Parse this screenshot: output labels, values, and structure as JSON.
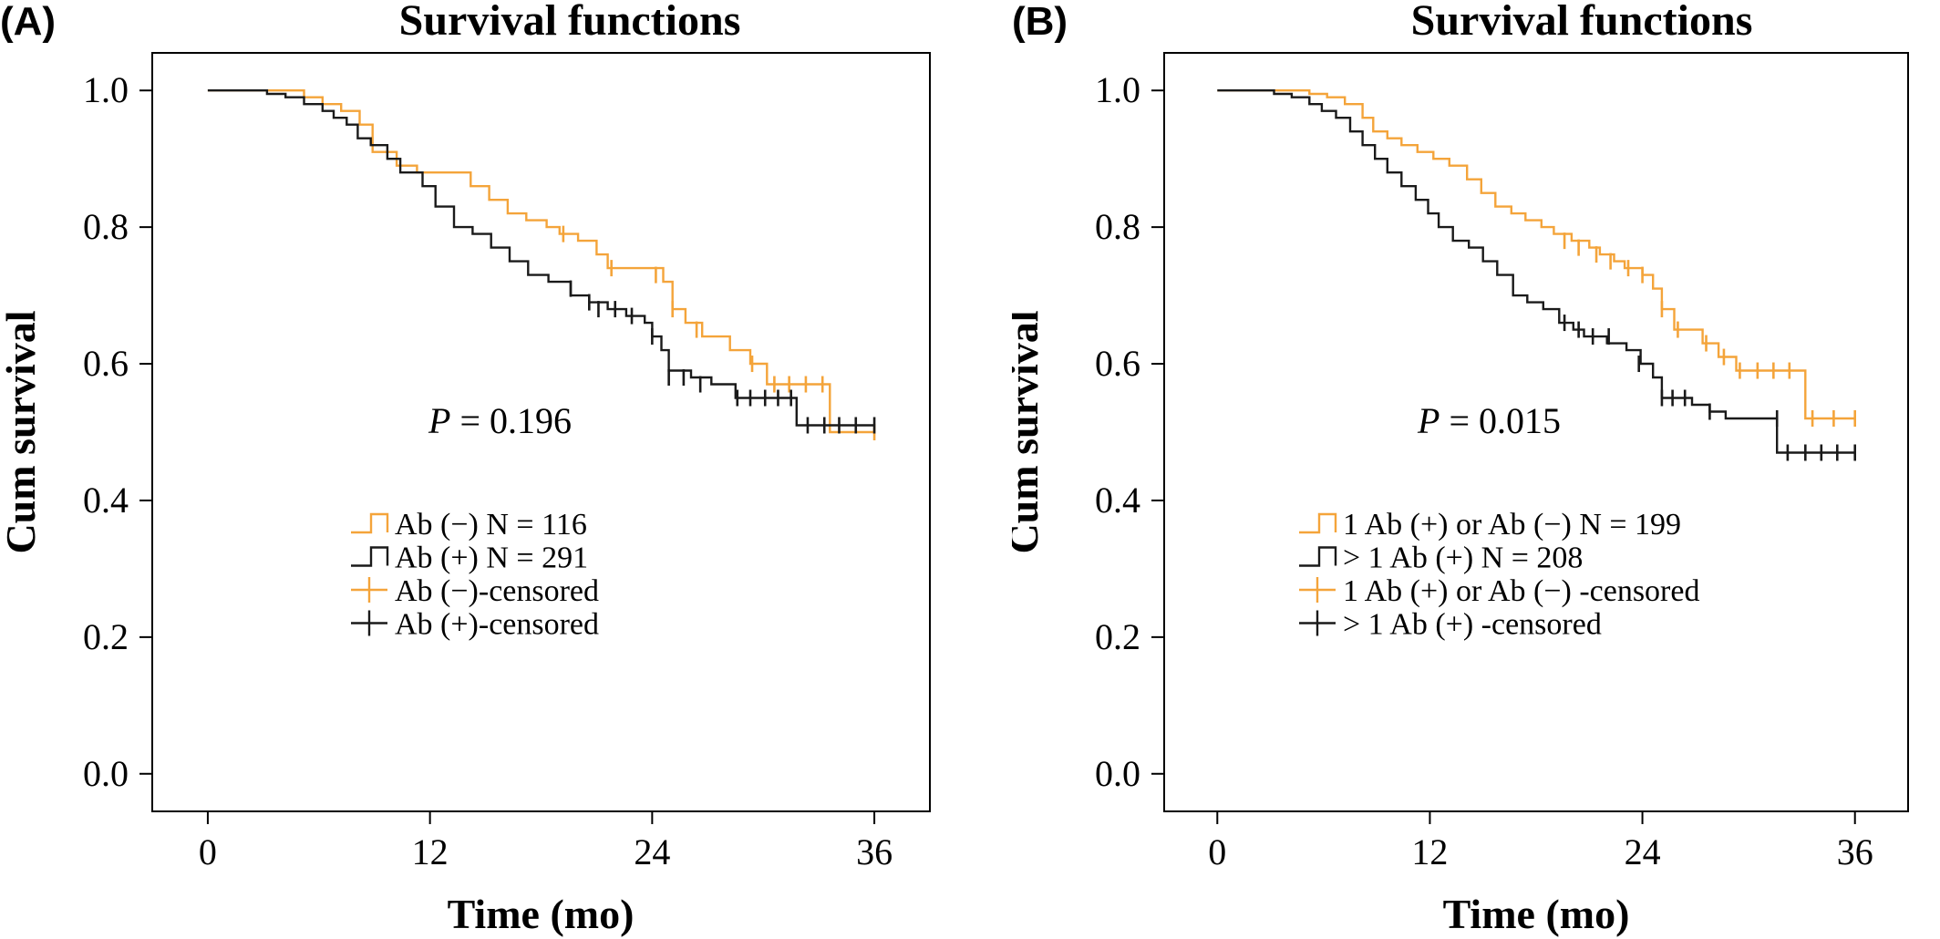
{
  "chart_data": [
    {
      "type": "line",
      "subtype": "kaplan-meier",
      "panel_label": "(A)",
      "title": "Survival functions",
      "xlabel": "Time (mo)",
      "ylabel": "Cum survival",
      "xlim": [
        -3,
        39
      ],
      "ylim": [
        -0.055,
        1.055
      ],
      "xticks": [
        0,
        12,
        24,
        36
      ],
      "xtick_labels": [
        "0",
        "12",
        "24",
        "36"
      ],
      "yticks": [
        0.0,
        0.2,
        0.4,
        0.6,
        0.8,
        1.0
      ],
      "ytick_labels": [
        "0.0",
        "0.2",
        "0.4",
        "0.6",
        "0.8",
        "1.0"
      ],
      "grid": false,
      "legend_position": "lower-left",
      "annotation": {
        "italic": "P",
        "text": " = 0.196"
      },
      "series": [
        {
          "name": "Ab (−)  N = 116",
          "censored_label": "Ab (−)-censored",
          "color": "#F4A43A",
          "steps": [
            [
              0,
              1.0
            ],
            [
              5.2,
              0.99
            ],
            [
              6.2,
              0.98
            ],
            [
              7.2,
              0.97
            ],
            [
              8.2,
              0.95
            ],
            [
              8.9,
              0.91
            ],
            [
              10.2,
              0.89
            ],
            [
              11.3,
              0.88
            ],
            [
              14.2,
              0.86
            ],
            [
              15.2,
              0.84
            ],
            [
              16.2,
              0.82
            ],
            [
              17.2,
              0.81
            ],
            [
              18.3,
              0.8
            ],
            [
              19,
              0.79
            ],
            [
              20,
              0.78
            ],
            [
              21,
              0.76
            ],
            [
              21.6,
              0.74
            ],
            [
              24.6,
              0.72
            ],
            [
              25.1,
              0.68
            ],
            [
              25.8,
              0.66
            ],
            [
              26.7,
              0.64
            ],
            [
              28.2,
              0.62
            ],
            [
              29.3,
              0.6
            ],
            [
              30.2,
              0.57
            ],
            [
              33.6,
              0.5
            ],
            [
              36,
              0.5
            ]
          ],
          "censored": [
            [
              19.2,
              0.79
            ],
            [
              21.8,
              0.74
            ],
            [
              24.2,
              0.73
            ],
            [
              25.1,
              0.68
            ],
            [
              26.4,
              0.65
            ],
            [
              29.4,
              0.6
            ],
            [
              30.6,
              0.57
            ],
            [
              31.4,
              0.57
            ],
            [
              32.3,
              0.57
            ],
            [
              33.2,
              0.57
            ],
            [
              36,
              0.5
            ]
          ]
        },
        {
          "name": "Ab (+) N = 291",
          "censored_label": "Ab (+)-censored",
          "color": "#1A1A1A",
          "steps": [
            [
              0,
              1.0
            ],
            [
              3.2,
              0.995
            ],
            [
              4.2,
              0.99
            ],
            [
              5.2,
              0.98
            ],
            [
              6.2,
              0.97
            ],
            [
              6.8,
              0.96
            ],
            [
              7.5,
              0.95
            ],
            [
              8.1,
              0.93
            ],
            [
              8.8,
              0.92
            ],
            [
              9.7,
              0.9
            ],
            [
              10.4,
              0.88
            ],
            [
              11.6,
              0.86
            ],
            [
              12.3,
              0.83
            ],
            [
              13.3,
              0.8
            ],
            [
              14.3,
              0.79
            ],
            [
              15.3,
              0.77
            ],
            [
              16.3,
              0.75
            ],
            [
              17.3,
              0.73
            ],
            [
              18.4,
              0.72
            ],
            [
              19.6,
              0.7
            ],
            [
              20.6,
              0.69
            ],
            [
              21.6,
              0.68
            ],
            [
              22.6,
              0.67
            ],
            [
              23.6,
              0.66
            ],
            [
              24,
              0.64
            ],
            [
              24.5,
              0.62
            ],
            [
              24.9,
              0.59
            ],
            [
              26.1,
              0.58
            ],
            [
              27.2,
              0.57
            ],
            [
              28.5,
              0.55
            ],
            [
              31.8,
              0.51
            ],
            [
              36,
              0.51
            ]
          ],
          "censored": [
            [
              19.6,
              0.71
            ],
            [
              20.6,
              0.69
            ],
            [
              21.1,
              0.68
            ],
            [
              22,
              0.68
            ],
            [
              22.9,
              0.67
            ],
            [
              24,
              0.64
            ],
            [
              24.9,
              0.58
            ],
            [
              25.7,
              0.58
            ],
            [
              26.6,
              0.57
            ],
            [
              28.6,
              0.55
            ],
            [
              29.3,
              0.55
            ],
            [
              30.1,
              0.55
            ],
            [
              30.8,
              0.55
            ],
            [
              31.5,
              0.55
            ],
            [
              32.4,
              0.51
            ],
            [
              33.3,
              0.51
            ],
            [
              34.1,
              0.51
            ],
            [
              35,
              0.51
            ],
            [
              36,
              0.51
            ]
          ]
        }
      ]
    },
    {
      "type": "line",
      "subtype": "kaplan-meier",
      "panel_label": "(B)",
      "title": "Survival functions",
      "xlabel": "Time (mo)",
      "ylabel": "Cum survival",
      "xlim": [
        -3,
        39
      ],
      "ylim": [
        -0.055,
        1.055
      ],
      "xticks": [
        0,
        12,
        24,
        36
      ],
      "xtick_labels": [
        "0",
        "12",
        "24",
        "36"
      ],
      "yticks": [
        0.0,
        0.2,
        0.4,
        0.6,
        0.8,
        1.0
      ],
      "ytick_labels": [
        "0.0",
        "0.2",
        "0.4",
        "0.6",
        "0.8",
        "1.0"
      ],
      "grid": false,
      "legend_position": "lower-left",
      "annotation": {
        "italic": "P",
        "text": " = 0.015"
      },
      "series": [
        {
          "name": "1 Ab (+) or Ab (−)  N = 199",
          "censored_label": "1 Ab (+) or Ab (−) -censored",
          "color": "#F4A43A",
          "steps": [
            [
              0,
              1.0
            ],
            [
              5.2,
              0.995
            ],
            [
              6.2,
              0.99
            ],
            [
              7.2,
              0.98
            ],
            [
              8.2,
              0.96
            ],
            [
              8.8,
              0.94
            ],
            [
              9.6,
              0.93
            ],
            [
              10.4,
              0.92
            ],
            [
              11.3,
              0.91
            ],
            [
              12.2,
              0.9
            ],
            [
              13.1,
              0.89
            ],
            [
              14.1,
              0.87
            ],
            [
              14.9,
              0.85
            ],
            [
              15.7,
              0.83
            ],
            [
              16.6,
              0.82
            ],
            [
              17.4,
              0.81
            ],
            [
              18.3,
              0.8
            ],
            [
              19,
              0.79
            ],
            [
              20,
              0.78
            ],
            [
              21,
              0.77
            ],
            [
              21.6,
              0.76
            ],
            [
              22.4,
              0.75
            ],
            [
              23,
              0.74
            ],
            [
              24,
              0.73
            ],
            [
              24.6,
              0.71
            ],
            [
              25.1,
              0.68
            ],
            [
              25.8,
              0.65
            ],
            [
              27.4,
              0.63
            ],
            [
              28.3,
              0.61
            ],
            [
              29.3,
              0.59
            ],
            [
              33.2,
              0.52
            ],
            [
              36,
              0.52
            ]
          ],
          "censored": [
            [
              19.6,
              0.78
            ],
            [
              20.4,
              0.77
            ],
            [
              21.4,
              0.76
            ],
            [
              22.2,
              0.75
            ],
            [
              23.2,
              0.74
            ],
            [
              24,
              0.73
            ],
            [
              25.1,
              0.68
            ],
            [
              26,
              0.65
            ],
            [
              27.6,
              0.63
            ],
            [
              28.6,
              0.61
            ],
            [
              29.5,
              0.59
            ],
            [
              30.5,
              0.59
            ],
            [
              31.4,
              0.59
            ],
            [
              32.3,
              0.59
            ],
            [
              33.6,
              0.52
            ],
            [
              34.8,
              0.52
            ],
            [
              36,
              0.52
            ]
          ]
        },
        {
          "name": "> 1 Ab (+) N = 208",
          "censored_label": "> 1 Ab (+) -censored",
          "color": "#1A1A1A",
          "steps": [
            [
              0,
              1.0
            ],
            [
              3.2,
              0.995
            ],
            [
              4.2,
              0.99
            ],
            [
              5.2,
              0.98
            ],
            [
              5.9,
              0.97
            ],
            [
              6.7,
              0.96
            ],
            [
              7.5,
              0.94
            ],
            [
              8.2,
              0.92
            ],
            [
              8.9,
              0.9
            ],
            [
              9.6,
              0.88
            ],
            [
              10.4,
              0.86
            ],
            [
              11.2,
              0.84
            ],
            [
              11.9,
              0.82
            ],
            [
              12.5,
              0.8
            ],
            [
              13.3,
              0.78
            ],
            [
              14.2,
              0.77
            ],
            [
              15,
              0.75
            ],
            [
              15.8,
              0.73
            ],
            [
              16.7,
              0.7
            ],
            [
              17.5,
              0.69
            ],
            [
              18.4,
              0.68
            ],
            [
              19.3,
              0.66
            ],
            [
              20.1,
              0.65
            ],
            [
              20.7,
              0.64
            ],
            [
              22,
              0.63
            ],
            [
              23.1,
              0.62
            ],
            [
              23.9,
              0.6
            ],
            [
              24.6,
              0.58
            ],
            [
              25.1,
              0.55
            ],
            [
              26.8,
              0.54
            ],
            [
              27.8,
              0.53
            ],
            [
              28.7,
              0.52
            ],
            [
              31.6,
              0.47
            ],
            [
              36,
              0.47
            ]
          ],
          "censored": [
            [
              19.6,
              0.66
            ],
            [
              20.4,
              0.65
            ],
            [
              21.2,
              0.64
            ],
            [
              22.1,
              0.64
            ],
            [
              23.8,
              0.6
            ],
            [
              25.1,
              0.55
            ],
            [
              25.7,
              0.55
            ],
            [
              26.4,
              0.55
            ],
            [
              27.8,
              0.53
            ],
            [
              31.6,
              0.52
            ],
            [
              32.2,
              0.47
            ],
            [
              33.2,
              0.47
            ],
            [
              34.1,
              0.47
            ],
            [
              35,
              0.47
            ],
            [
              36,
              0.47
            ]
          ]
        }
      ]
    }
  ]
}
